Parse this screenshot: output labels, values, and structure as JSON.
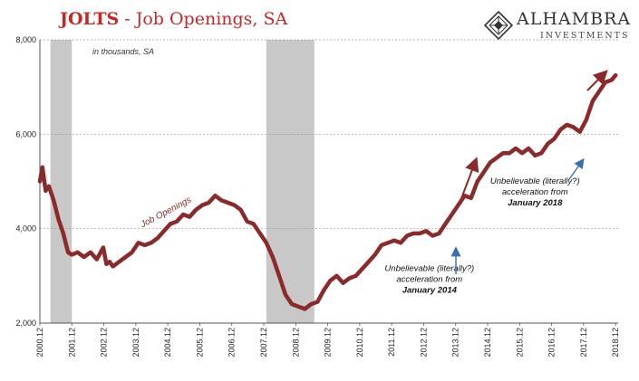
{
  "title": {
    "highlight": "JOLTS",
    "rest": " - Job Openings, SA"
  },
  "brand": {
    "name": "ALHAMBRA",
    "sub": "INVESTMENTS"
  },
  "colors": {
    "series": "#8b2a2a",
    "recession": "#c8c8c8",
    "annotation_blue": "#3b6fb0",
    "title": "#c62828"
  },
  "chart_data": {
    "type": "line",
    "unit_note": "in thousands, SA",
    "ylim": [
      2000,
      8000
    ],
    "yticks": [
      2000,
      4000,
      6000,
      8000
    ],
    "ytick_labels": [
      "2,000",
      "4,000",
      "6,000",
      "8,000"
    ],
    "xlim": [
      2000.92,
      2019.0
    ],
    "xticks": [
      2000.92,
      2001.92,
      2002.92,
      2003.92,
      2004.92,
      2005.92,
      2006.92,
      2007.92,
      2008.92,
      2009.92,
      2010.92,
      2011.92,
      2012.92,
      2013.92,
      2014.92,
      2015.92,
      2016.92,
      2017.92,
      2018.92
    ],
    "xtick_labels": [
      "2000.12",
      "2001.12",
      "2002.12",
      "2003.12",
      "2004.12",
      "2005.12",
      "2006.12",
      "2007.12",
      "2008.12",
      "2009.12",
      "2010.12",
      "2011.12",
      "2012.12",
      "2013.12",
      "2014.12",
      "2015.12",
      "2016.12",
      "2017.12",
      "2018.12"
    ],
    "recessions": [
      [
        2001.25,
        2001.92
      ],
      [
        2008.0,
        2009.5
      ]
    ],
    "grid": "horizontal dashed",
    "series": [
      {
        "name": "Job Openings",
        "x": [
          2000.92,
          2001.0,
          2001.1,
          2001.2,
          2001.35,
          2001.5,
          2001.65,
          2001.8,
          2001.92,
          2002.1,
          2002.3,
          2002.5,
          2002.7,
          2002.9,
          2003.0,
          2003.1,
          2003.2,
          2003.4,
          2003.6,
          2003.8,
          2004.0,
          2004.2,
          2004.4,
          2004.6,
          2004.8,
          2005.0,
          2005.2,
          2005.4,
          2005.6,
          2005.8,
          2006.0,
          2006.2,
          2006.4,
          2006.6,
          2006.8,
          2007.0,
          2007.2,
          2007.4,
          2007.6,
          2007.8,
          2008.0,
          2008.2,
          2008.4,
          2008.6,
          2008.8,
          2009.0,
          2009.2,
          2009.4,
          2009.6,
          2009.8,
          2010.0,
          2010.2,
          2010.4,
          2010.6,
          2010.8,
          2011.0,
          2011.2,
          2011.4,
          2011.6,
          2011.8,
          2012.0,
          2012.2,
          2012.4,
          2012.6,
          2012.8,
          2013.0,
          2013.2,
          2013.4,
          2013.6,
          2013.8,
          2014.0,
          2014.2,
          2014.4,
          2014.6,
          2014.8,
          2015.0,
          2015.2,
          2015.4,
          2015.6,
          2015.8,
          2016.0,
          2016.2,
          2016.4,
          2016.6,
          2016.8,
          2017.0,
          2017.2,
          2017.4,
          2017.6,
          2017.8,
          2018.0,
          2018.2,
          2018.4,
          2018.6,
          2018.8,
          2018.92
        ],
        "y": [
          5000,
          5300,
          4800,
          4900,
          4600,
          4200,
          3900,
          3500,
          3450,
          3500,
          3400,
          3500,
          3350,
          3600,
          3250,
          3300,
          3200,
          3300,
          3400,
          3500,
          3700,
          3650,
          3700,
          3800,
          3950,
          4100,
          4150,
          4300,
          4250,
          4400,
          4500,
          4550,
          4700,
          4600,
          4550,
          4500,
          4400,
          4150,
          4100,
          3900,
          3700,
          3400,
          3000,
          2600,
          2400,
          2350,
          2300,
          2400,
          2450,
          2700,
          2900,
          3000,
          2850,
          2950,
          3000,
          3150,
          3300,
          3450,
          3650,
          3700,
          3750,
          3700,
          3850,
          3900,
          3900,
          3950,
          3850,
          3900,
          4100,
          4300,
          4500,
          4700,
          4650,
          5000,
          5200,
          5400,
          5500,
          5600,
          5600,
          5700,
          5600,
          5700,
          5550,
          5600,
          5800,
          5900,
          6100,
          6200,
          6150,
          6050,
          6300,
          6700,
          6900,
          7100,
          7150,
          7250
        ]
      }
    ],
    "annotations": [
      {
        "text": "Job Openings",
        "x": 2004.9,
        "y": 4300
      },
      {
        "lines": [
          "Unbelievable (literally?)",
          "acceleration from"
        ],
        "bold": "January 2014",
        "x": 2013.1,
        "y": 3100
      },
      {
        "lines": [
          "Unbelievable (literally?)",
          "acceleration from"
        ],
        "bold": "January 2018",
        "x": 2016.4,
        "y": 4950
      }
    ]
  }
}
